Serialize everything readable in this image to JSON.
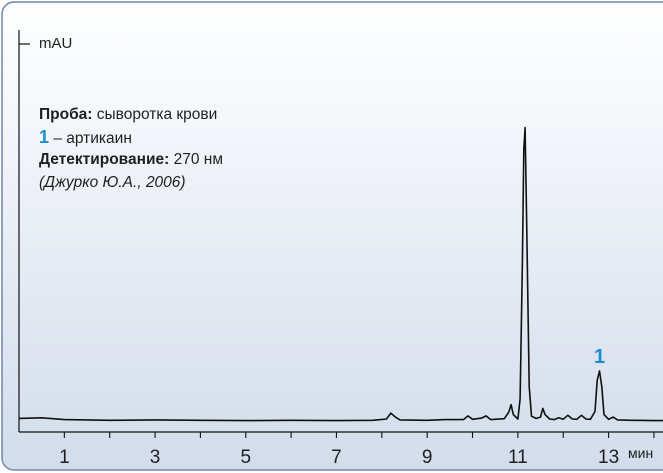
{
  "colors": {
    "background_top": "#ffffff",
    "background_bottom": "#d2dceb",
    "frame": "#6d87a8",
    "trace": "#111111",
    "peak_label": "#1a8fc8"
  },
  "annotations": {
    "sample_label": "Проба:",
    "sample_value": "сыворотка крови",
    "peak_number": "1",
    "peak_name": "– артикаин",
    "detection_label": "Детектирование:",
    "detection_value": "270 нм",
    "citation": "(Джурко Ю.А., 2006)"
  },
  "chart_data": {
    "type": "line",
    "title": "",
    "ylabel": "mAU",
    "xlabel": "мин",
    "xlim": [
      0.0,
      14.2
    ],
    "ylim": [
      0,
      100
    ],
    "x_ticks": [
      1,
      3,
      5,
      7,
      9,
      11,
      13
    ],
    "grid": false,
    "series": [
      {
        "values_description": "chromatogram trace, x in min, y in relative mAU",
        "x": [
          0.0,
          0.5,
          1.0,
          2.0,
          3.0,
          4.0,
          5.0,
          6.0,
          7.0,
          7.8,
          8.1,
          8.2,
          8.3,
          8.4,
          9.0,
          9.4,
          9.8,
          9.9,
          10.0,
          10.2,
          10.3,
          10.4,
          10.7,
          10.8,
          10.85,
          10.9,
          11.0,
          11.05,
          11.1,
          11.13,
          11.16,
          11.2,
          11.25,
          11.3,
          11.4,
          11.5,
          11.55,
          11.6,
          11.7,
          11.8,
          11.9,
          12.0,
          12.1,
          12.2,
          12.3,
          12.4,
          12.5,
          12.6,
          12.7,
          12.75,
          12.8,
          12.85,
          12.9,
          13.0,
          13.1,
          13.2,
          13.5,
          14.0,
          14.2
        ],
        "y": [
          1.8,
          2.0,
          1.4,
          1.2,
          1.3,
          1.2,
          1.1,
          1.2,
          1.1,
          1.2,
          1.6,
          3.5,
          2.2,
          1.3,
          1.2,
          1.4,
          1.4,
          2.6,
          1.5,
          1.9,
          2.6,
          1.4,
          1.7,
          3.8,
          6.2,
          3.0,
          1.6,
          8.0,
          52.0,
          88.0,
          95.0,
          60.0,
          12.0,
          2.5,
          1.8,
          2.2,
          5.0,
          3.0,
          1.6,
          1.4,
          2.0,
          1.5,
          2.8,
          1.6,
          1.5,
          2.8,
          1.6,
          1.5,
          4.0,
          14.0,
          17.0,
          12.0,
          3.0,
          1.5,
          2.2,
          1.3,
          1.2,
          1.1,
          1.1
        ]
      }
    ],
    "peak_labels": [
      {
        "x": 12.8,
        "label": "1"
      }
    ]
  }
}
